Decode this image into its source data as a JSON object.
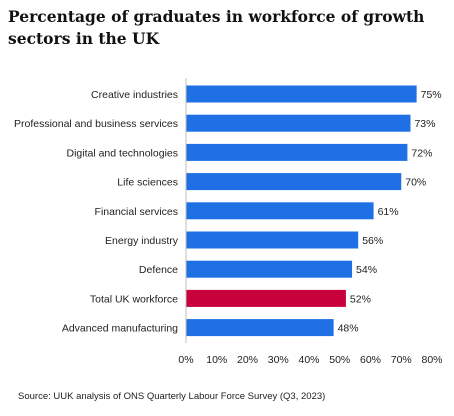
{
  "chart_data": {
    "type": "bar",
    "orientation": "horizontal",
    "title": "Percentage of graduates in workforce of growth sectors in the UK",
    "categories": [
      "Creative industries",
      "Professional and business services",
      "Digital and technologies",
      "Life sciences",
      "Financial services",
      "Energy industry",
      "Defence",
      "Total UK workforce",
      "Advanced manufacturing"
    ],
    "values": [
      75,
      73,
      72,
      70,
      61,
      56,
      54,
      52,
      48
    ],
    "data_labels": [
      "75%",
      "73%",
      "72%",
      "70%",
      "61%",
      "56%",
      "54%",
      "52%",
      "48%"
    ],
    "xlim": [
      0,
      80
    ],
    "xticks": [
      0,
      10,
      20,
      30,
      40,
      50,
      60,
      70,
      80
    ],
    "xtick_labels": [
      "0%",
      "10%",
      "20%",
      "30%",
      "40%",
      "50%",
      "60%",
      "70%",
      "80%"
    ],
    "grid": false,
    "legend": "none",
    "colors": {
      "default": "#1f6fe5",
      "highlight": "#c8003c"
    },
    "highlight_category": "Total UK workforce"
  },
  "source": "Source: UUK analysis of ONS Quarterly Labour Force Survey (Q3, 2023)"
}
